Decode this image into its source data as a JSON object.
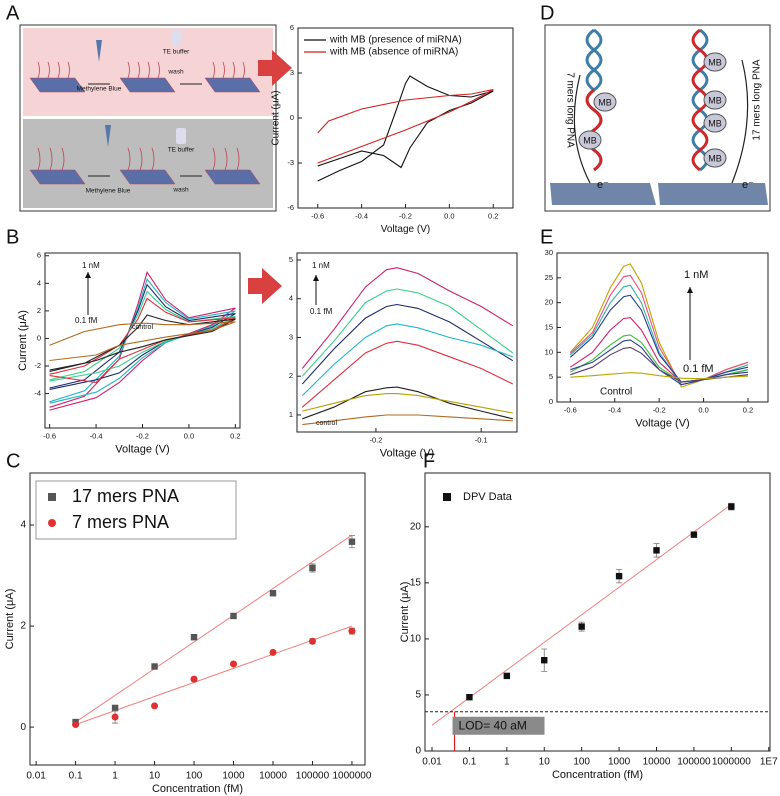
{
  "panel_labels": [
    "A",
    "B",
    "C",
    "D",
    "E",
    "F"
  ],
  "schematic_A": {
    "labels": [
      "Methylene Blue",
      "TE buffer",
      "wash",
      "Methylene Blue",
      "TE buffer",
      "wash"
    ]
  },
  "schematic_D": {
    "mb": "MB",
    "left_label": "7 mers long PNA",
    "right_label": "17 mers long PNA",
    "electron": "e⁻"
  },
  "chart_data": [
    {
      "type": "line",
      "xlabel": "Voltage (V)",
      "ylabel": "Current (μA)",
      "xlim": [
        -0.69,
        0.29
      ],
      "ylim": [
        -6,
        6
      ],
      "xticks": [
        -0.6,
        -0.4,
        -0.2,
        {
          "value": 0,
          "label": "0.0"
        },
        0.2
      ],
      "yticks": [
        -6,
        -3,
        0,
        3,
        6
      ],
      "legend": "upper",
      "series": [
        {
          "name": "with MB (presence of miRNA)",
          "color": "#111111",
          "x": [
            -0.6,
            -0.5,
            -0.4,
            -0.3,
            -0.25,
            -0.2,
            -0.18,
            -0.1,
            0,
            0.1,
            0.2,
            0.1,
            0,
            -0.1,
            -0.18,
            -0.22,
            -0.3,
            -0.4,
            -0.5,
            -0.6
          ],
          "values": [
            -4.2,
            -3.5,
            -2.9,
            -1.8,
            0.2,
            2.3,
            2.8,
            2.1,
            1.5,
            1.4,
            1.8,
            1.0,
            0.5,
            -0.3,
            -2.0,
            -3.3,
            -2.5,
            -2.2,
            -2.7,
            -3.2
          ]
        },
        {
          "name": "with MB (absence of miRNA)",
          "color": "#d42020",
          "x": [
            -0.6,
            -0.4,
            -0.2,
            0,
            0.1,
            0.2,
            0.1,
            0,
            -0.2,
            -0.4,
            -0.55,
            -0.6
          ],
          "values": [
            -3.0,
            -1.9,
            -0.8,
            0.4,
            1.1,
            1.9,
            1.6,
            1.5,
            1.2,
            0.6,
            -0.2,
            -1.0
          ]
        }
      ]
    },
    {
      "type": "line",
      "xlabel": "Voltage (V)",
      "ylabel": "Current (μA)",
      "xlim": [
        -0.62,
        0.22
      ],
      "ylim": [
        -6.5,
        6.2
      ],
      "xticks": [
        -0.6,
        -0.4,
        -0.2,
        {
          "value": 0,
          "label": "0.0"
        },
        0.2
      ],
      "yticks": [
        -4,
        -2,
        0,
        2,
        4,
        6
      ],
      "annotations": [
        "1 nM",
        "0.1 fM",
        "control"
      ],
      "x": [
        -0.6,
        -0.45,
        -0.3,
        -0.22,
        -0.18,
        -0.1,
        0,
        0.2,
        0.1,
        -0.1,
        -0.2,
        -0.3,
        -0.4,
        -0.6
      ],
      "series": [
        {
          "color": "#d0206a",
          "values": [
            -5.0,
            -4.2,
            -1.5,
            2.5,
            4.8,
            2.8,
            1.5,
            2.2,
            1.0,
            -0.3,
            -1.6,
            -3.2,
            -4.3,
            -5.2
          ]
        },
        {
          "color": "#20b8c8",
          "values": [
            -4.6,
            -3.8,
            -1.3,
            2.2,
            4.3,
            2.6,
            1.4,
            2.0,
            0.9,
            -0.3,
            -1.4,
            -2.9,
            -3.9,
            -4.7
          ]
        },
        {
          "color": "#1f2a6b",
          "values": [
            -3.6,
            -3.0,
            -1.0,
            2.0,
            3.9,
            2.3,
            1.3,
            1.8,
            0.8,
            -0.2,
            -1.2,
            -2.5,
            -3.0,
            -3.7
          ]
        },
        {
          "color": "#3ad08a",
          "values": [
            -3.0,
            -2.4,
            -0.7,
            1.7,
            3.4,
            2.1,
            1.2,
            1.6,
            0.7,
            -0.2,
            -1.0,
            -2.0,
            -2.5,
            -3.1
          ]
        },
        {
          "color": "#e03040",
          "values": [
            -2.6,
            -2.0,
            -0.5,
            1.4,
            2.9,
            1.9,
            1.2,
            1.5,
            0.6,
            -0.1,
            -0.8,
            -1.5,
            -3.2,
            -2.7
          ]
        },
        {
          "color": "#222222",
          "values": [
            -2.3,
            -1.8,
            -0.5,
            0.8,
            1.7,
            1.3,
            1.0,
            1.4,
            0.5,
            -0.1,
            -0.6,
            -1.0,
            -1.6,
            -2.4
          ]
        },
        {
          "color": "#b06a20",
          "values": [
            -0.5,
            0.5,
            1.0,
            1.1,
            1.1,
            1.0,
            1.0,
            1.2,
            0.6,
            0.1,
            -0.2,
            -0.5,
            -1.2,
            -1.6
          ]
        }
      ]
    },
    {
      "type": "line",
      "xlabel": "Voltage (V)",
      "xlim": [
        -0.275,
        -0.066
      ],
      "ylim": [
        0.56,
        5.18
      ],
      "xticks": [
        -0.2,
        -0.1
      ],
      "yticks": [
        1,
        2,
        3,
        4,
        5
      ],
      "annotations": [
        "1 nM",
        "0.1 fM",
        "control"
      ],
      "x": [
        -0.27,
        -0.24,
        -0.21,
        -0.19,
        -0.18,
        -0.16,
        -0.13,
        -0.1,
        -0.07
      ],
      "series": [
        {
          "color": "#d0206a",
          "values": [
            2.2,
            3.2,
            4.3,
            4.75,
            4.8,
            4.65,
            4.2,
            3.8,
            3.3
          ]
        },
        {
          "color": "#3ad08a",
          "values": [
            2.0,
            2.9,
            3.9,
            4.2,
            4.25,
            4.15,
            3.8,
            3.2,
            2.6
          ]
        },
        {
          "color": "#1f2a6b",
          "values": [
            1.8,
            2.7,
            3.5,
            3.8,
            3.85,
            3.75,
            3.4,
            2.9,
            2.4
          ]
        },
        {
          "color": "#20b8c8",
          "values": [
            1.5,
            2.3,
            3.0,
            3.3,
            3.35,
            3.25,
            3.0,
            2.8,
            2.5
          ]
        },
        {
          "color": "#e03040",
          "values": [
            1.2,
            1.9,
            2.6,
            2.85,
            2.9,
            2.8,
            2.5,
            2.2,
            1.8
          ]
        },
        {
          "color": "#222222",
          "values": [
            0.9,
            1.2,
            1.6,
            1.7,
            1.72,
            1.6,
            1.3,
            1.1,
            0.9
          ]
        },
        {
          "color": "#b8a000",
          "values": [
            1.1,
            1.3,
            1.5,
            1.55,
            1.55,
            1.5,
            1.35,
            1.2,
            1.05
          ]
        },
        {
          "color": "#b06a20",
          "values": [
            0.75,
            0.85,
            0.95,
            1.0,
            1.0,
            1.0,
            0.95,
            0.9,
            0.85
          ]
        }
      ]
    },
    {
      "type": "line",
      "xlabel": "Voltage (V)",
      "xlim": [
        -0.66,
        0.29
      ],
      "ylim": [
        0,
        30
      ],
      "xticks": [
        -0.6,
        -0.4,
        -0.2,
        {
          "value": 0,
          "label": "0.0"
        },
        0.2
      ],
      "yticks": [
        0,
        5,
        10,
        15,
        20,
        25,
        30
      ],
      "annotations": [
        "1 nM",
        "0.1 fM",
        "Control"
      ],
      "x": [
        -0.6,
        -0.5,
        -0.42,
        -0.36,
        -0.33,
        -0.28,
        -0.2,
        -0.1,
        0,
        0.1,
        0.2
      ],
      "series": [
        {
          "color": "#c8a000",
          "values": [
            10,
            15,
            23,
            27.3,
            27.8,
            24,
            12,
            3,
            4.5,
            6.5,
            8
          ]
        },
        {
          "color": "#e8507a",
          "values": [
            9.8,
            14,
            21.5,
            25.2,
            25.5,
            22,
            11,
            3.5,
            4.5,
            6.5,
            8
          ]
        },
        {
          "color": "#33b2a8",
          "values": [
            9.5,
            13.5,
            20,
            23.2,
            23.5,
            20,
            10,
            3.5,
            4.5,
            6,
            7.5
          ]
        },
        {
          "color": "#1f3a93",
          "values": [
            9,
            13,
            18.5,
            21.2,
            21.5,
            18.5,
            9.5,
            4,
            4.5,
            6,
            7
          ]
        },
        {
          "color": "#d0206a",
          "values": [
            7,
            10,
            14.5,
            16.8,
            17,
            14.5,
            8,
            4,
            4.5,
            5.5,
            6.5
          ]
        },
        {
          "color": "#3cbf3c",
          "values": [
            6,
            8.5,
            11.5,
            13.3,
            13.5,
            12,
            7,
            4,
            4.5,
            5.5,
            6.5
          ]
        },
        {
          "color": "#2a3f8f",
          "values": [
            6.5,
            8,
            10.5,
            12.3,
            12.5,
            11,
            6.5,
            3.5,
            4.5,
            5.5,
            6
          ]
        },
        {
          "color": "#5a3a7a",
          "values": [
            5.5,
            7,
            9.5,
            10.8,
            11,
            9.8,
            6.5,
            4,
            4.5,
            5,
            5.5
          ]
        },
        {
          "color": "#b8a800",
          "values": [
            5,
            5.3,
            5.6,
            5.8,
            5.9,
            5.8,
            5.3,
            4.8,
            4.7,
            5,
            5.2
          ]
        }
      ]
    },
    {
      "type": "scatter",
      "xscale": "log",
      "xlabel": "Concentration (fM)",
      "ylabel": "Current (μA)",
      "xlim": [
        0.007,
        2140000
      ],
      "ylim": [
        -0.75,
        5.03
      ],
      "xticks": [
        0.01,
        0.1,
        1,
        10,
        100,
        1000,
        10000,
        100000,
        1000000
      ],
      "yticks": [
        0,
        2,
        4
      ],
      "legend": "upper left",
      "x": [
        0.1,
        1,
        10,
        100,
        1000,
        10000,
        100000,
        1000000
      ],
      "series": [
        {
          "name": "17 mers PNA",
          "color": "#555555",
          "marker": "square",
          "values": [
            0.1,
            0.38,
            1.2,
            1.78,
            2.2,
            2.65,
            3.15,
            3.67
          ],
          "errors": [
            0.03,
            0.05,
            0.03,
            0.03,
            0.03,
            0.04,
            0.08,
            0.12
          ]
        },
        {
          "name": "7 mers PNA",
          "color": "#e03030",
          "marker": "circle",
          "values": [
            0.05,
            0.2,
            0.42,
            0.95,
            1.25,
            1.48,
            1.7,
            1.9
          ],
          "errors": [
            0.03,
            0.12,
            0.03,
            0.04,
            0.03,
            0.03,
            0.05,
            0.06
          ]
        }
      ],
      "fit_lines": [
        {
          "color": "#f08080",
          "x": [
            0.1,
            1000000
          ],
          "values": [
            0.1,
            3.8
          ]
        },
        {
          "color": "#f08080",
          "x": [
            0.1,
            1000000
          ],
          "values": [
            0.05,
            2.0
          ]
        }
      ]
    },
    {
      "type": "scatter",
      "xscale": "log",
      "xlabel": "Concentration (fM)",
      "ylabel": "Current (μA)",
      "xlim": [
        0.0065,
        10800000
      ],
      "ylim": [
        0,
        24.8
      ],
      "xticks": [
        0.01,
        0.1,
        1,
        10,
        100,
        1000,
        10000,
        100000,
        1000000,
        {
          "value": 10000000,
          "label": "1E7"
        }
      ],
      "yticks": [
        0,
        5,
        10,
        15,
        20
      ],
      "legend": "upper left",
      "x": [
        0.1,
        1,
        10,
        100,
        1000,
        10000,
        100000,
        1000000
      ],
      "series": [
        {
          "name": "DPV Data",
          "color": "#111111",
          "marker": "square",
          "values": [
            4.8,
            6.7,
            8.1,
            11.1,
            15.6,
            17.9,
            19.3,
            21.8
          ],
          "errors": [
            0.2,
            0.2,
            1.0,
            0.4,
            0.6,
            0.6,
            0.2,
            0.3
          ]
        }
      ],
      "fit_lines": [
        {
          "color": "#f08080",
          "x": [
            0.01,
            1000000
          ],
          "values": [
            2.3,
            22.0
          ]
        }
      ],
      "reference_line": 3.5,
      "lod_x": 0.04,
      "lod_label": "LOD= 40 aM"
    }
  ]
}
